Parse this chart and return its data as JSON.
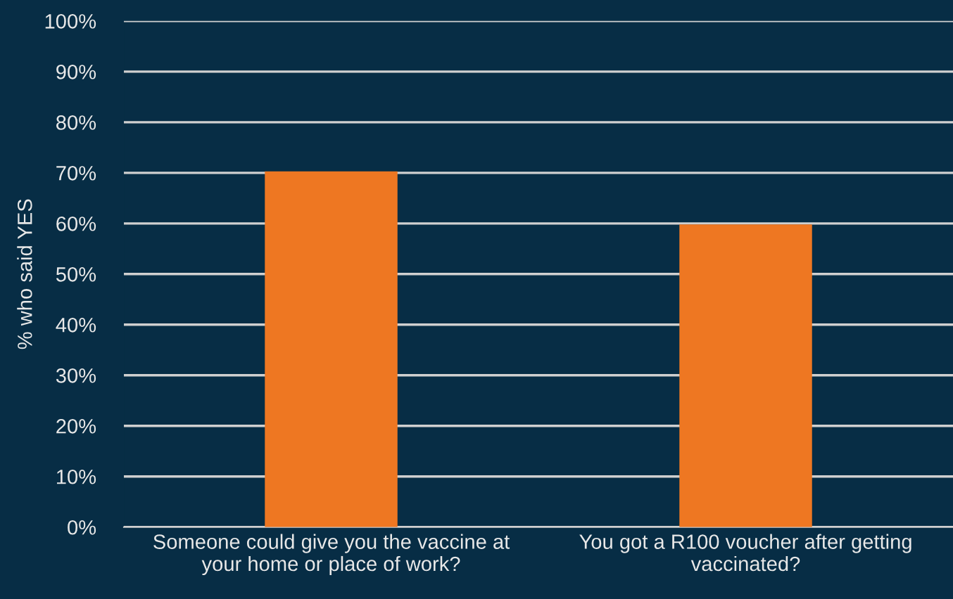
{
  "chart_data": {
    "type": "bar",
    "ylabel": "% who said YES",
    "categories": [
      "Someone could give you the vaccine at\nyour home or place of work?",
      "You got a R100 voucher after getting\nvaccinated?"
    ],
    "values": [
      70.3,
      59.8
    ],
    "color": "#ee7722",
    "ylim": [
      0,
      100
    ],
    "yticks": [
      {
        "value": 0,
        "label": "0%"
      },
      {
        "value": 10,
        "label": "10%"
      },
      {
        "value": 20,
        "label": "20%"
      },
      {
        "value": 30,
        "label": "30%"
      },
      {
        "value": 40,
        "label": "40%"
      },
      {
        "value": 50,
        "label": "50%"
      },
      {
        "value": 60,
        "label": "60%"
      },
      {
        "value": 70,
        "label": "70%"
      },
      {
        "value": 80,
        "label": "80%"
      },
      {
        "value": 90,
        "label": "90%"
      },
      {
        "value": 100,
        "label": "100%"
      }
    ],
    "grid": "y"
  }
}
